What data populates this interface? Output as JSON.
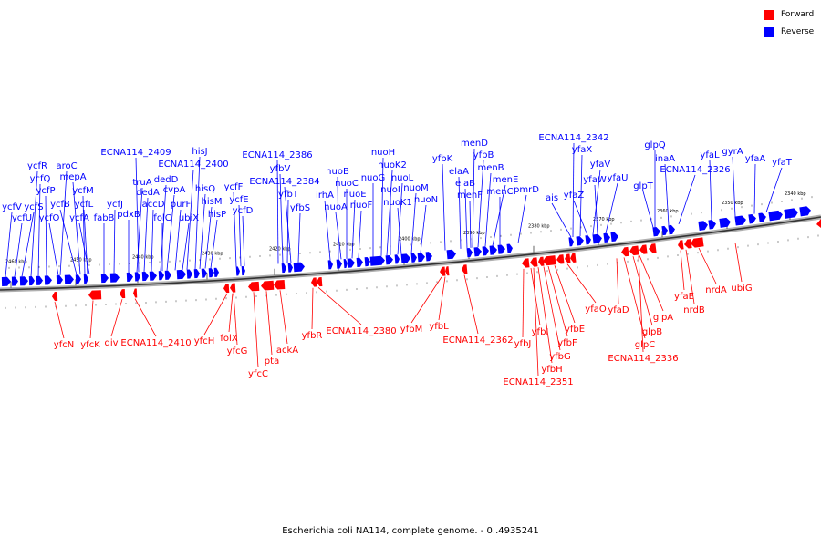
{
  "legend": {
    "forward_label": "Forward",
    "reverse_label": "Reverse",
    "forward_color": "#ff0000",
    "reverse_color": "#0000ff"
  },
  "caption": "Escherichia coli NA114, complete genome. - 0..4935241",
  "axis": {
    "ticks": [
      "2460 kbp",
      "2450 kbp",
      "2440 kbp",
      "2430 kbp",
      "2420 kbp",
      "2410 kbp",
      "2400 kbp",
      "2390 kbp",
      "2380 kbp",
      "2370 kbp",
      "2360 kbp",
      "2350 kbp",
      "2340 kbp"
    ]
  },
  "reverse_genes": [
    "ycfV",
    "ycfU",
    "ycfS",
    "ycfR",
    "ycfQ",
    "ycfP",
    "ycfO",
    "aroC",
    "ycfB",
    "mepA",
    "ycfM",
    "ycfL",
    "ycfA",
    "fabB",
    "ycfJ",
    "pdxB",
    "truA",
    "ECNA114_2409",
    "dedA",
    "accD",
    "dedD",
    "cvpA",
    "folC",
    "purF",
    "ubiX",
    "ECNA114_2400",
    "hisJ",
    "hisQ",
    "hisM",
    "hisP",
    "ycfF",
    "ycfE",
    "ycfD",
    "ECNA114_2386",
    "yfbV",
    "yfbT",
    "ECNA114_2384",
    "yfbS",
    "irhA",
    "nuoB",
    "nuoA",
    "nuoC",
    "nuoE",
    "nuoF",
    "nuoG",
    "nuoH",
    "nuoK2",
    "nuoI",
    "nuoL",
    "nuoK1",
    "nuoM",
    "nuoN",
    "yfbK",
    "elaA",
    "elaB",
    "menF",
    "menD",
    "yfbB",
    "menB",
    "menE",
    "menC",
    "pmrD",
    "ECNA114_2342",
    "ais",
    "yfaX",
    "yfaZ",
    "yfaV",
    "yfaW",
    "yfaU",
    "glpQ",
    "glpT",
    "inaA",
    "ECNA114_2326",
    "yfaL",
    "gyrA",
    "yfaA",
    "yfaT"
  ],
  "forward_genes": [
    "yfcN",
    "yfcK",
    "div",
    "ECNA114_2410",
    "yfcH",
    "folX",
    "yfcG",
    "yfcC",
    "pta",
    "ackA",
    "yfbR",
    "ECNA114_2380",
    "yfbM",
    "yfbL",
    "ECNA114_2362",
    "yfbJ",
    "yfbI",
    "ECNA114_2351",
    "yfbH",
    "yfbG",
    "yfbF",
    "yfbE",
    "yfaO",
    "yfaD",
    "glpC",
    "glpB",
    "glpA",
    "ECNA114_2336",
    "yfaE",
    "nrdB",
    "nrdA",
    "ubiG"
  ]
}
